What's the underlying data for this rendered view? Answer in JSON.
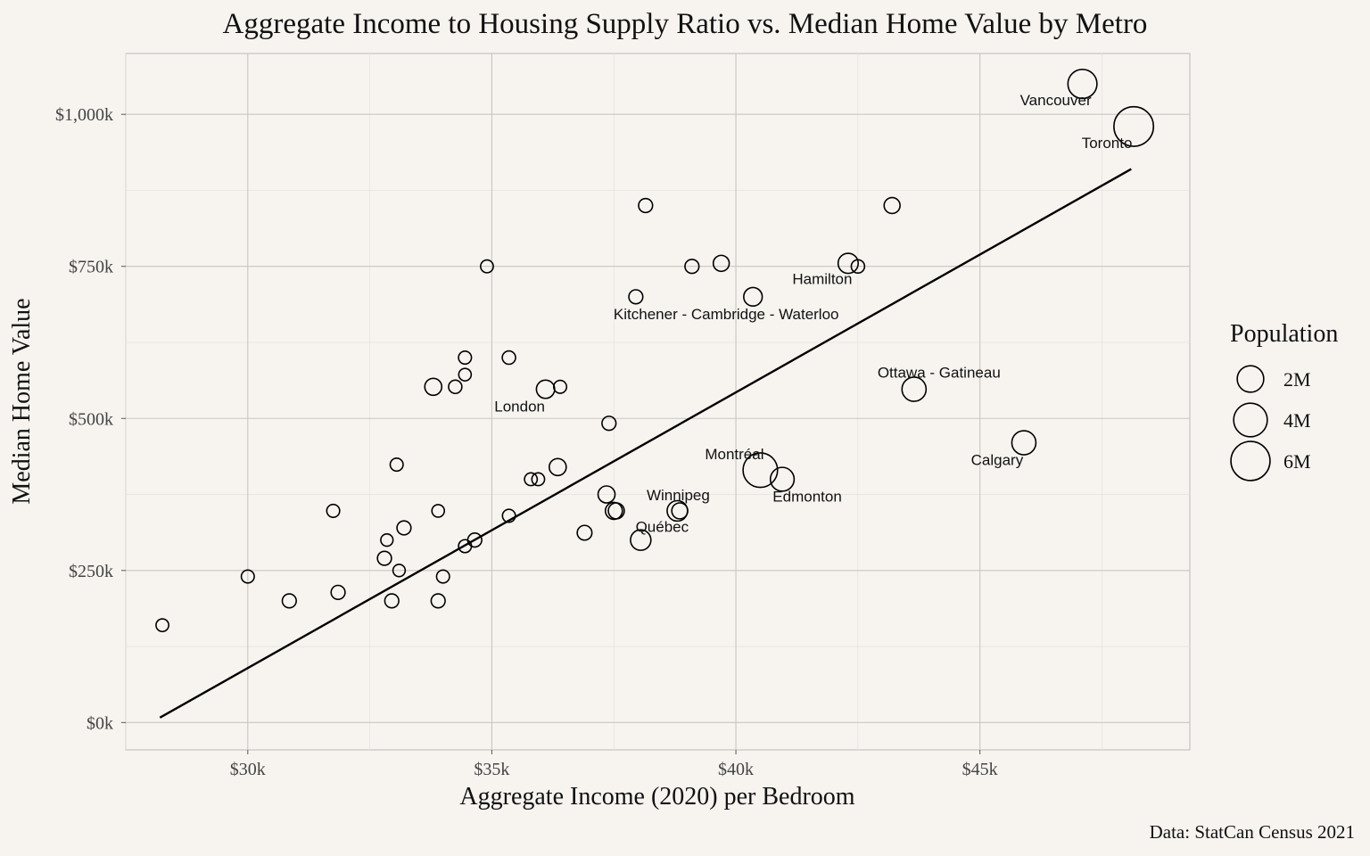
{
  "chart_data": {
    "type": "scatter",
    "title": "Aggregate Income to Housing Supply Ratio vs. Median Home Value by Metro",
    "xlabel": "Aggregate Income (2020) per Bedroom",
    "ylabel": "Median Home Value",
    "caption": "Data: StatCan Census 2021",
    "xlim": [
      27500,
      49300
    ],
    "ylim": [
      -45000,
      1100000
    ],
    "x_ticks": [
      30000,
      35000,
      40000,
      45000
    ],
    "x_tick_labels": [
      "$30k",
      "$35k",
      "$40k",
      "$45k"
    ],
    "y_ticks": [
      0,
      250000,
      500000,
      750000,
      1000000
    ],
    "y_tick_labels": [
      "$0k",
      "$250k",
      "$500k",
      "$750k",
      "$1,000k"
    ],
    "grid": true,
    "legend": {
      "title": "Population",
      "placement": "right",
      "entries": [
        {
          "label": "2M",
          "value": 2000000
        },
        {
          "label": "4M",
          "value": 4000000
        },
        {
          "label": "6M",
          "value": 6000000
        }
      ]
    },
    "trend_line": {
      "x": [
        28200,
        48100
      ],
      "y": [
        8000,
        910000
      ]
    },
    "points": [
      {
        "x": 47100,
        "y": 1050000,
        "pop": 2640000,
        "label": "Vancouver"
      },
      {
        "x": 48150,
        "y": 980000,
        "pop": 6200000,
        "label": "Toronto"
      },
      {
        "x": 43650,
        "y": 548000,
        "pop": 1490000,
        "label": "Ottawa - Gatineau"
      },
      {
        "x": 45900,
        "y": 460000,
        "pop": 1480000,
        "label": "Calgary"
      },
      {
        "x": 40500,
        "y": 415000,
        "pop": 4290000,
        "label": "Montréal"
      },
      {
        "x": 40950,
        "y": 400000,
        "pop": 1420000,
        "label": "Edmonton"
      },
      {
        "x": 42300,
        "y": 755000,
        "pop": 785000,
        "label": "Hamilton"
      },
      {
        "x": 40350,
        "y": 700000,
        "pop": 575000,
        "label": "Kitchener - Cambridge - Waterloo"
      },
      {
        "x": 36100,
        "y": 548000,
        "pop": 543000,
        "label": "London"
      },
      {
        "x": 38800,
        "y": 348000,
        "pop": 834000,
        "label": "Winnipeg"
      },
      {
        "x": 38050,
        "y": 300000,
        "pop": 839000,
        "label": "Québec"
      },
      {
        "x": 38850,
        "y": 348000,
        "pop": 300000
      },
      {
        "x": 37500,
        "y": 348000,
        "pop": 400000
      },
      {
        "x": 37550,
        "y": 348000,
        "pop": 300000
      },
      {
        "x": 37350,
        "y": 375000,
        "pop": 400000
      },
      {
        "x": 36350,
        "y": 420000,
        "pop": 400000
      },
      {
        "x": 36900,
        "y": 312000,
        "pop": 200000
      },
      {
        "x": 37400,
        "y": 492000,
        "pop": 150000
      },
      {
        "x": 38150,
        "y": 850000,
        "pop": 150000
      },
      {
        "x": 43200,
        "y": 850000,
        "pop": 300000
      },
      {
        "x": 39100,
        "y": 750000,
        "pop": 150000
      },
      {
        "x": 39700,
        "y": 755000,
        "pop": 300000
      },
      {
        "x": 42500,
        "y": 750000,
        "pop": 110000
      },
      {
        "x": 37950,
        "y": 700000,
        "pop": 150000
      },
      {
        "x": 34900,
        "y": 750000,
        "pop": 80000
      },
      {
        "x": 35350,
        "y": 600000,
        "pop": 110000
      },
      {
        "x": 34450,
        "y": 600000,
        "pop": 90000
      },
      {
        "x": 34450,
        "y": 572000,
        "pop": 70000
      },
      {
        "x": 33800,
        "y": 552000,
        "pop": 400000
      },
      {
        "x": 34250,
        "y": 552000,
        "pop": 110000
      },
      {
        "x": 36400,
        "y": 552000,
        "pop": 90000
      },
      {
        "x": 33050,
        "y": 424000,
        "pop": 90000
      },
      {
        "x": 35800,
        "y": 400000,
        "pop": 80000
      },
      {
        "x": 35950,
        "y": 400000,
        "pop": 80000
      },
      {
        "x": 35350,
        "y": 340000,
        "pop": 90000
      },
      {
        "x": 33900,
        "y": 348000,
        "pop": 70000
      },
      {
        "x": 31750,
        "y": 348000,
        "pop": 90000
      },
      {
        "x": 33200,
        "y": 320000,
        "pop": 150000
      },
      {
        "x": 34650,
        "y": 300000,
        "pop": 150000
      },
      {
        "x": 34450,
        "y": 290000,
        "pop": 90000
      },
      {
        "x": 32850,
        "y": 300000,
        "pop": 60000
      },
      {
        "x": 32800,
        "y": 270000,
        "pop": 150000
      },
      {
        "x": 33100,
        "y": 250000,
        "pop": 60000
      },
      {
        "x": 34000,
        "y": 240000,
        "pop": 90000
      },
      {
        "x": 30000,
        "y": 240000,
        "pop": 90000
      },
      {
        "x": 31850,
        "y": 214000,
        "pop": 150000
      },
      {
        "x": 30850,
        "y": 200000,
        "pop": 150000
      },
      {
        "x": 32950,
        "y": 200000,
        "pop": 150000
      },
      {
        "x": 33900,
        "y": 200000,
        "pop": 150000
      },
      {
        "x": 28250,
        "y": 160000,
        "pop": 80000
      }
    ]
  }
}
